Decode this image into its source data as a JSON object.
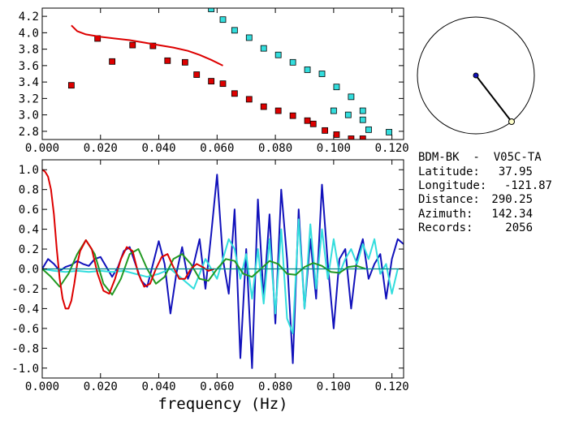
{
  "info": {
    "station": "BDM-BK  -  V05C-TA",
    "lines": [
      {
        "label": "Latitude:",
        "value": "37.95"
      },
      {
        "label": "Longitude:",
        "value": "-121.87"
      },
      {
        "label": "Distance:",
        "value": "290.25"
      },
      {
        "label": "Azimuth:",
        "value": "142.34"
      },
      {
        "label": "Records:",
        "value": "2056"
      }
    ]
  },
  "colors": {
    "red": "#dd0000",
    "cyan": "#33dddd",
    "blue": "#1111bb",
    "green": "#229922",
    "teal": "#008888",
    "axis": "#000000"
  },
  "chart_data": [
    {
      "type": "scatter",
      "title": "",
      "xlabel": "",
      "ylabel": "",
      "xlim": [
        0.0,
        0.124
      ],
      "ylim": [
        2.7,
        4.3
      ],
      "xticks": [
        "0.000",
        "0.020",
        "0.040",
        "0.060",
        "0.080",
        "0.100",
        "0.120"
      ],
      "yticks": [
        "2.8",
        "3.0",
        "3.2",
        "3.4",
        "3.6",
        "3.8",
        "4.0",
        "4.2"
      ],
      "series": [
        {
          "kind": "points",
          "color": "red",
          "x": [
            0.01,
            0.019,
            0.024,
            0.031,
            0.038,
            0.043,
            0.049,
            0.053,
            0.058,
            0.062,
            0.066,
            0.071,
            0.076,
            0.081,
            0.086,
            0.091,
            0.093,
            0.097,
            0.101,
            0.106,
            0.11
          ],
          "y": [
            3.36,
            3.93,
            3.65,
            3.85,
            3.84,
            3.66,
            3.64,
            3.49,
            3.41,
            3.38,
            3.26,
            3.19,
            3.1,
            3.05,
            2.99,
            2.93,
            2.89,
            2.81,
            2.76,
            2.71,
            2.71
          ]
        },
        {
          "kind": "points",
          "color": "cyan",
          "x": [
            0.058,
            0.062,
            0.066,
            0.071,
            0.076,
            0.081,
            0.086,
            0.091,
            0.096,
            0.101,
            0.106,
            0.11,
            0.112,
            0.119
          ],
          "y": [
            4.29,
            4.16,
            4.03,
            3.94,
            3.81,
            3.73,
            3.64,
            3.55,
            3.5,
            3.34,
            3.22,
            3.05,
            2.82,
            2.79
          ]
        },
        {
          "kind": "points",
          "color": "cyan",
          "x": [
            0.1,
            0.105,
            0.11
          ],
          "y": [
            3.05,
            3.0,
            2.94
          ]
        },
        {
          "kind": "line",
          "color": "red",
          "x": [
            0.01,
            0.012,
            0.015,
            0.02,
            0.025,
            0.03,
            0.035,
            0.04,
            0.045,
            0.05,
            0.054,
            0.058,
            0.062
          ],
          "y": [
            4.09,
            4.02,
            3.98,
            3.95,
            3.93,
            3.91,
            3.88,
            3.85,
            3.82,
            3.78,
            3.73,
            3.67,
            3.6
          ]
        }
      ]
    },
    {
      "type": "line",
      "title": "",
      "xlabel": "frequency (Hz)",
      "ylabel": "",
      "xlim": [
        0.0,
        0.124
      ],
      "ylim": [
        -1.1,
        1.1
      ],
      "xticks": [
        "0.000",
        "0.020",
        "0.040",
        "0.060",
        "0.080",
        "0.100",
        "0.120"
      ],
      "yticks": [
        "-1.0",
        "-0.8",
        "-0.6",
        "-0.4",
        "-0.2",
        "0.0",
        "0.2",
        "0.4",
        "0.6",
        "0.8",
        "1.0"
      ],
      "series": [
        {
          "color": "blue",
          "x": [
            0.0,
            0.002,
            0.004,
            0.006,
            0.008,
            0.01,
            0.012,
            0.014,
            0.016,
            0.018,
            0.02,
            0.022,
            0.024,
            0.026,
            0.028,
            0.03,
            0.032,
            0.034,
            0.036,
            0.038,
            0.04,
            0.042,
            0.044,
            0.046,
            0.048,
            0.05,
            0.052,
            0.054,
            0.056,
            0.058,
            0.06,
            0.062,
            0.064,
            0.066,
            0.068,
            0.07,
            0.072,
            0.074,
            0.076,
            0.078,
            0.08,
            0.082,
            0.084,
            0.086,
            0.088,
            0.09,
            0.092,
            0.094,
            0.096,
            0.098,
            0.1,
            0.102,
            0.104,
            0.106,
            0.108,
            0.11,
            0.112,
            0.114,
            0.116,
            0.118,
            0.12,
            0.122,
            0.124
          ],
          "y": [
            0.0,
            0.1,
            0.05,
            -0.02,
            0.02,
            0.04,
            0.08,
            0.05,
            0.03,
            0.1,
            0.12,
            0.02,
            -0.08,
            0.02,
            0.18,
            0.22,
            0.05,
            -0.12,
            -0.18,
            0.05,
            0.28,
            0.05,
            -0.45,
            -0.05,
            0.22,
            -0.1,
            0.05,
            0.3,
            -0.2,
            0.35,
            0.95,
            0.1,
            -0.25,
            0.6,
            -0.9,
            0.2,
            -1.0,
            0.7,
            -0.3,
            0.55,
            -0.55,
            0.8,
            0.1,
            -0.95,
            0.6,
            -0.4,
            0.3,
            -0.3,
            0.85,
            0.05,
            -0.6,
            0.1,
            0.2,
            -0.4,
            0.1,
            0.3,
            -0.1,
            0.05,
            0.15,
            -0.3,
            0.1,
            0.3,
            0.25
          ]
        },
        {
          "color": "cyan",
          "x": [
            0.0,
            0.004,
            0.008,
            0.012,
            0.016,
            0.02,
            0.024,
            0.028,
            0.032,
            0.036,
            0.04,
            0.044,
            0.048,
            0.052,
            0.056,
            0.06,
            0.064,
            0.066,
            0.068,
            0.07,
            0.072,
            0.074,
            0.076,
            0.078,
            0.08,
            0.082,
            0.084,
            0.086,
            0.088,
            0.09,
            0.092,
            0.094,
            0.096,
            0.098,
            0.1,
            0.102,
            0.104,
            0.106,
            0.108,
            0.11,
            0.112,
            0.114,
            0.116,
            0.118,
            0.12,
            0.122
          ],
          "y": [
            0.0,
            -0.02,
            -0.03,
            -0.02,
            -0.03,
            -0.02,
            -0.03,
            -0.02,
            -0.05,
            -0.08,
            -0.05,
            0.0,
            -0.1,
            -0.2,
            0.1,
            -0.1,
            0.3,
            0.2,
            -0.1,
            0.15,
            -0.3,
            0.2,
            -0.35,
            0.3,
            -0.45,
            0.4,
            -0.5,
            -0.65,
            0.5,
            -0.4,
            0.45,
            -0.2,
            0.4,
            -0.1,
            0.3,
            -0.05,
            0.1,
            0.2,
            0.05,
            0.25,
            0.1,
            0.3,
            -0.05,
            0.05,
            -0.25,
            0.0
          ]
        },
        {
          "color": "green",
          "x": [
            0.0,
            0.003,
            0.006,
            0.009,
            0.012,
            0.015,
            0.018,
            0.021,
            0.024,
            0.027,
            0.03,
            0.033,
            0.036,
            0.039,
            0.042,
            0.045,
            0.048,
            0.051,
            0.054,
            0.057,
            0.06,
            0.063,
            0.066,
            0.069,
            0.072,
            0.075,
            0.078,
            0.081,
            0.084,
            0.087,
            0.09,
            0.093,
            0.096,
            0.099,
            0.102,
            0.105,
            0.108,
            0.111
          ],
          "y": [
            0.0,
            -0.08,
            -0.18,
            -0.05,
            0.15,
            0.29,
            0.15,
            -0.15,
            -0.26,
            -0.1,
            0.15,
            0.2,
            0.0,
            -0.15,
            -0.08,
            0.1,
            0.15,
            0.05,
            -0.1,
            -0.12,
            0.0,
            0.1,
            0.08,
            -0.05,
            -0.08,
            0.0,
            0.08,
            0.05,
            -0.05,
            -0.06,
            0.02,
            0.06,
            0.03,
            -0.03,
            -0.04,
            0.02,
            0.03,
            0.0
          ]
        },
        {
          "color": "red",
          "x": [
            0.0,
            0.001,
            0.002,
            0.003,
            0.004,
            0.005,
            0.006,
            0.007,
            0.008,
            0.009,
            0.01,
            0.011,
            0.012,
            0.013,
            0.015,
            0.017,
            0.019,
            0.021,
            0.023,
            0.025,
            0.027,
            0.029,
            0.031,
            0.033,
            0.035,
            0.037,
            0.039,
            0.041,
            0.043,
            0.045,
            0.047,
            0.049,
            0.051,
            0.053,
            0.055,
            0.057,
            0.059
          ],
          "y": [
            1.0,
            0.98,
            0.93,
            0.8,
            0.55,
            0.2,
            -0.1,
            -0.3,
            -0.4,
            -0.4,
            -0.32,
            -0.15,
            0.05,
            0.18,
            0.29,
            0.2,
            -0.05,
            -0.22,
            -0.25,
            -0.1,
            0.1,
            0.22,
            0.18,
            -0.05,
            -0.18,
            -0.15,
            0.0,
            0.12,
            0.15,
            0.02,
            -0.1,
            -0.1,
            0.0,
            0.05,
            0.02,
            -0.02,
            0.0
          ]
        },
        {
          "color": "teal",
          "x": [
            0.0,
            0.124
          ],
          "y": [
            0.0,
            0.0
          ]
        }
      ]
    },
    {
      "type": "other",
      "title": "",
      "kind": "azimuth-dial",
      "azimuth_deg": 142.34
    }
  ]
}
